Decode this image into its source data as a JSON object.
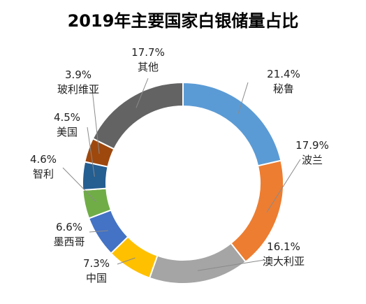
{
  "chart_data": {
    "type": "pie",
    "style": "doughnut",
    "title": "2019年主要国家白银储量占比",
    "slices": [
      {
        "name": "秘鲁",
        "value": 21.4,
        "label": "21.4%",
        "color": "#5B9BD5"
      },
      {
        "name": "波兰",
        "value": 17.9,
        "label": "17.9%",
        "color": "#ED7D31"
      },
      {
        "name": "澳大利亚",
        "value": 16.1,
        "label": "16.1%",
        "color": "#A5A5A5"
      },
      {
        "name": "中国",
        "value": 7.3,
        "label": "7.3%",
        "color": "#FFC000"
      },
      {
        "name": "墨西哥",
        "value": 6.6,
        "label": "6.6%",
        "color": "#4472C4"
      },
      {
        "name": "智利",
        "value": 4.6,
        "label": "4.6%",
        "color": "#70AD47"
      },
      {
        "name": "美国",
        "value": 4.5,
        "label": "4.5%",
        "color": "#255E91"
      },
      {
        "name": "玻利维亚",
        "value": 3.9,
        "label": "3.9%",
        "color": "#9E480E"
      },
      {
        "name": "其他",
        "value": 17.7,
        "label": "17.7%",
        "color": "#636363"
      }
    ]
  }
}
